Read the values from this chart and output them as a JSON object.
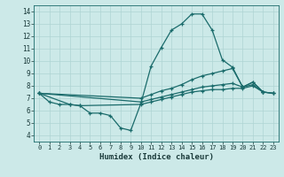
{
  "xlabel": "Humidex (Indice chaleur)",
  "xlim": [
    -0.5,
    23.5
  ],
  "ylim": [
    3.5,
    14.5
  ],
  "xticks": [
    0,
    1,
    2,
    3,
    4,
    5,
    6,
    7,
    8,
    9,
    10,
    11,
    12,
    13,
    14,
    15,
    16,
    17,
    18,
    19,
    20,
    21,
    22,
    23
  ],
  "yticks": [
    4,
    5,
    6,
    7,
    8,
    9,
    10,
    11,
    12,
    13,
    14
  ],
  "bg_color": "#cce9e8",
  "line_color": "#1a6b6b",
  "grid_color": "#afd4d3",
  "line1_x": [
    0,
    1,
    2,
    3,
    4,
    5,
    6,
    7,
    8,
    9,
    10,
    11,
    12,
    13,
    14,
    15,
    16,
    17,
    18,
    19,
    20,
    21,
    22
  ],
  "line1_y": [
    7.4,
    6.7,
    6.5,
    6.5,
    6.4,
    5.8,
    5.8,
    5.6,
    4.6,
    4.4,
    6.6,
    9.6,
    11.1,
    12.5,
    13.0,
    13.8,
    13.8,
    12.5,
    10.1,
    9.5,
    7.9,
    8.3,
    7.5
  ],
  "line2_x": [
    0,
    10,
    11,
    12,
    13,
    14,
    15,
    16,
    17,
    18,
    19,
    20,
    21,
    22,
    23
  ],
  "line2_y": [
    7.4,
    7.0,
    7.3,
    7.6,
    7.8,
    8.1,
    8.5,
    8.8,
    9.0,
    9.2,
    9.4,
    7.9,
    8.3,
    7.5,
    7.4
  ],
  "line3_x": [
    0,
    10,
    11,
    12,
    13,
    14,
    15,
    16,
    17,
    18,
    19,
    20,
    21,
    22,
    23
  ],
  "line3_y": [
    7.4,
    6.7,
    6.9,
    7.1,
    7.3,
    7.5,
    7.7,
    7.9,
    8.0,
    8.1,
    8.2,
    7.9,
    8.1,
    7.5,
    7.4
  ],
  "line4_x": [
    0,
    3,
    4,
    10,
    11,
    12,
    13,
    14,
    15,
    16,
    17,
    18,
    19,
    20,
    21,
    22,
    23
  ],
  "line4_y": [
    7.4,
    6.5,
    6.4,
    6.5,
    6.7,
    6.9,
    7.1,
    7.3,
    7.5,
    7.6,
    7.7,
    7.7,
    7.8,
    7.8,
    8.0,
    7.5,
    7.4
  ]
}
